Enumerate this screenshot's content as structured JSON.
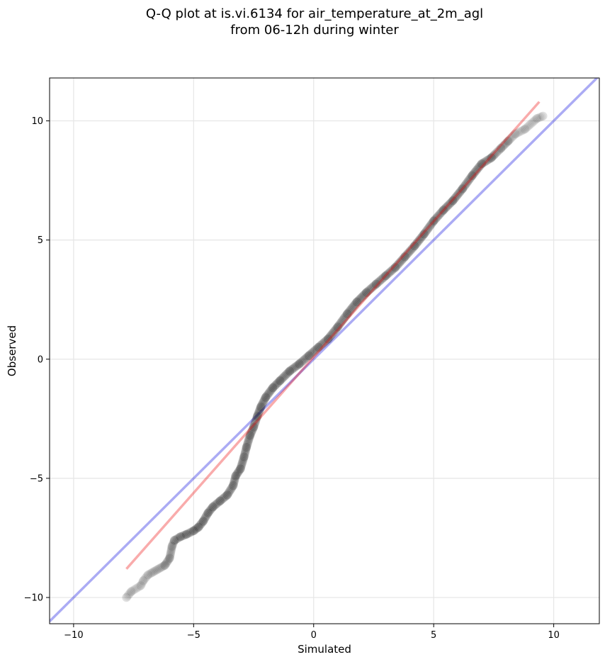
{
  "chart_data": {
    "type": "scatter",
    "title": "Q-Q plot at is.vi.6134 for air_temperature_at_2m_agl",
    "subtitle": "from 06-12h during winter",
    "xlabel": "Simulated",
    "ylabel": "Observed",
    "xlim": [
      -11.0,
      11.9
    ],
    "ylim": [
      -11.1,
      11.8
    ],
    "x_ticks": [
      -10,
      -5,
      0,
      5,
      10
    ],
    "y_ticks": [
      -10,
      -5,
      0,
      5,
      10
    ],
    "x_tick_labels": [
      "−10",
      "−5",
      "0",
      "5",
      "10"
    ],
    "y_tick_labels": [
      "−10",
      "−5",
      "0",
      "5",
      "10"
    ],
    "grid": true,
    "colors": {
      "points": "#000000",
      "identity_line": "#0000dd",
      "fit_line": "#ee0000",
      "grid": "#e6e6e6"
    },
    "identity_line": {
      "x": [
        -11.0,
        11.9
      ],
      "y": [
        -11.0,
        11.9
      ]
    },
    "fit_line": {
      "x": [
        -7.8,
        9.4
      ],
      "y": [
        -8.8,
        10.8
      ]
    },
    "qq_points": [
      [
        -7.8,
        -10.0
      ],
      [
        -7.6,
        -9.75
      ],
      [
        -7.2,
        -9.5
      ],
      [
        -7.1,
        -9.3
      ],
      [
        -6.9,
        -9.05
      ],
      [
        -6.2,
        -8.65
      ],
      [
        -6.0,
        -8.35
      ],
      [
        -5.9,
        -7.85
      ],
      [
        -5.8,
        -7.6
      ],
      [
        -5.55,
        -7.45
      ],
      [
        -5.3,
        -7.35
      ],
      [
        -5.0,
        -7.2
      ],
      [
        -4.8,
        -7.05
      ],
      [
        -4.6,
        -6.8
      ],
      [
        -4.4,
        -6.45
      ],
      [
        -4.2,
        -6.2
      ],
      [
        -3.9,
        -5.95
      ],
      [
        -3.6,
        -5.7
      ],
      [
        -3.35,
        -5.3
      ],
      [
        -3.25,
        -4.9
      ],
      [
        -3.05,
        -4.6
      ],
      [
        -2.9,
        -4.1
      ],
      [
        -2.8,
        -3.7
      ],
      [
        -2.65,
        -3.2
      ],
      [
        -2.5,
        -2.85
      ],
      [
        -2.35,
        -2.4
      ],
      [
        -2.2,
        -2.0
      ],
      [
        -2.0,
        -1.6
      ],
      [
        -1.7,
        -1.2
      ],
      [
        -1.4,
        -0.9
      ],
      [
        -1.0,
        -0.5
      ],
      [
        -0.6,
        -0.2
      ],
      [
        -0.2,
        0.15
      ],
      [
        0.2,
        0.5
      ],
      [
        0.6,
        0.85
      ],
      [
        1.0,
        1.35
      ],
      [
        1.4,
        1.9
      ],
      [
        1.8,
        2.4
      ],
      [
        2.2,
        2.8
      ],
      [
        2.6,
        3.15
      ],
      [
        3.0,
        3.5
      ],
      [
        3.4,
        3.85
      ],
      [
        3.8,
        4.3
      ],
      [
        4.2,
        4.75
      ],
      [
        4.6,
        5.25
      ],
      [
        5.0,
        5.8
      ],
      [
        5.4,
        6.25
      ],
      [
        5.8,
        6.65
      ],
      [
        6.2,
        7.15
      ],
      [
        6.6,
        7.7
      ],
      [
        7.0,
        8.2
      ],
      [
        7.4,
        8.45
      ],
      [
        7.8,
        8.85
      ],
      [
        8.1,
        9.15
      ],
      [
        8.4,
        9.45
      ],
      [
        8.8,
        9.65
      ],
      [
        9.3,
        10.1
      ],
      [
        9.55,
        10.2
      ]
    ]
  }
}
